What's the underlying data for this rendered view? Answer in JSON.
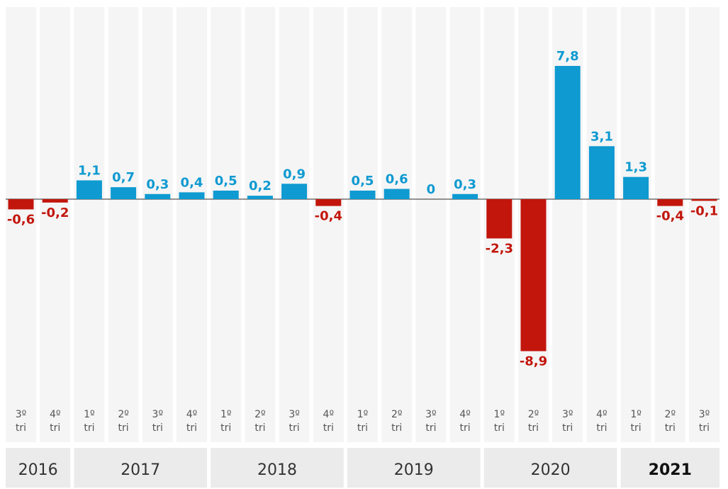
{
  "chart_data": {
    "type": "bar",
    "categories": [
      {
        "q": "3º",
        "t": "tri"
      },
      {
        "q": "4º",
        "t": "tri"
      },
      {
        "q": "1º",
        "t": "tri"
      },
      {
        "q": "2º",
        "t": "tri"
      },
      {
        "q": "3º",
        "t": "tri"
      },
      {
        "q": "4º",
        "t": "tri"
      },
      {
        "q": "1º",
        "t": "tri"
      },
      {
        "q": "2º",
        "t": "tri"
      },
      {
        "q": "3º",
        "t": "tri"
      },
      {
        "q": "4º",
        "t": "tri"
      },
      {
        "q": "1º",
        "t": "tri"
      },
      {
        "q": "2º",
        "t": "tri"
      },
      {
        "q": "3º",
        "t": "tri"
      },
      {
        "q": "4º",
        "t": "tri"
      },
      {
        "q": "1º",
        "t": "tri"
      },
      {
        "q": "2º",
        "t": "tri"
      },
      {
        "q": "3º",
        "t": "tri"
      },
      {
        "q": "4º",
        "t": "tri"
      },
      {
        "q": "1º",
        "t": "tri"
      },
      {
        "q": "2º",
        "t": "tri"
      },
      {
        "q": "3º",
        "t": "tri"
      }
    ],
    "values": [
      -0.6,
      -0.2,
      1.1,
      0.7,
      0.3,
      0.4,
      0.5,
      0.2,
      0.9,
      -0.4,
      0.5,
      0.6,
      0,
      0.3,
      -2.3,
      -8.9,
      7.8,
      3.1,
      1.3,
      -0.4,
      -0.1
    ],
    "value_labels": [
      "-0,6",
      "-0,2",
      "1,1",
      "0,7",
      "0,3",
      "0,4",
      "0,5",
      "0,2",
      "0,9",
      "-0,4",
      "0,5",
      "0,6",
      "0",
      "0,3",
      "-2,3",
      "-8,9",
      "7,8",
      "3,1",
      "1,3",
      "-0,4",
      "-0,1"
    ],
    "years": [
      {
        "label": "2016",
        "count": 2,
        "bold": false
      },
      {
        "label": "2017",
        "count": 4,
        "bold": false
      },
      {
        "label": "2018",
        "count": 4,
        "bold": false
      },
      {
        "label": "2019",
        "count": 4,
        "bold": false
      },
      {
        "label": "2020",
        "count": 4,
        "bold": false
      },
      {
        "label": "2021",
        "count": 3,
        "bold": true
      }
    ],
    "ylim": [
      -10.4,
      11
    ],
    "grid": false,
    "colors": {
      "positive": "#0f9ad1",
      "negative": "#c2160c",
      "column_bg": "#f5f5f5",
      "year_bg": "#ebebeb",
      "zero_line": "#555555"
    }
  }
}
